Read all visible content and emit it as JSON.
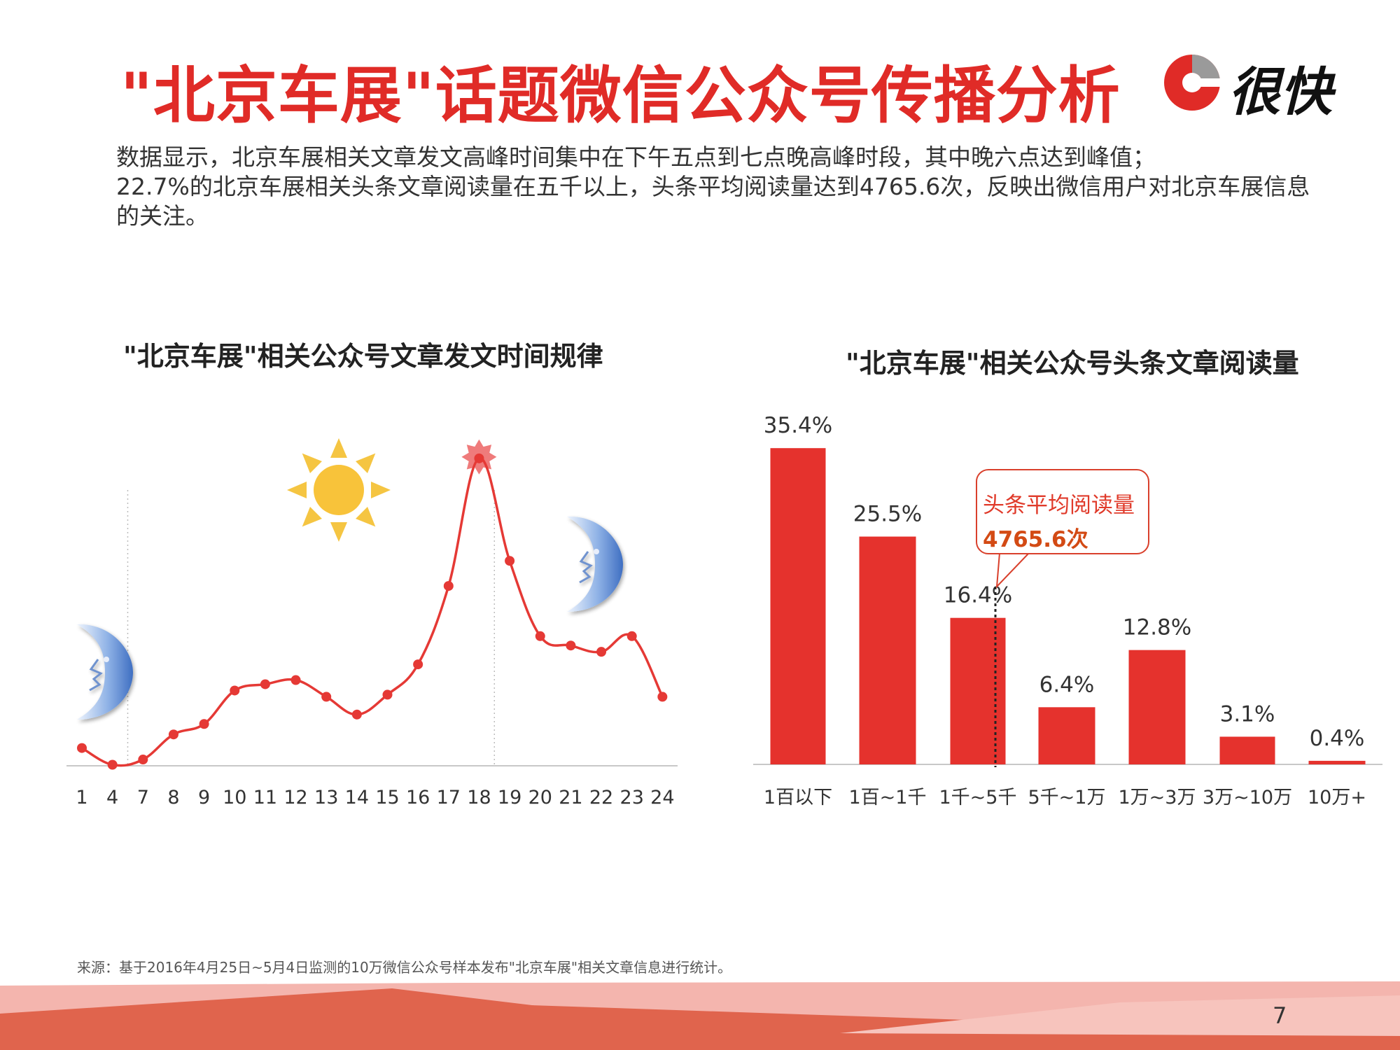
{
  "header": {
    "title": "\"北京车展\"话题微信公众号传播分析",
    "logo_text": "很快",
    "brand_color": "#e02b27"
  },
  "description": {
    "line1": "数据显示，北京车展相关文章发文高峰时间集中在下午五点到七点晚高峰时段，其中晚六点达到峰值；",
    "line2": "22.7%的北京车展相关头条文章阅读量在五千以上，头条平均阅读量达到4765.6次，反映出微信用户对北京车展信息的关注。"
  },
  "chart_data": [
    {
      "type": "line",
      "title": "\"北京车展\"相关公众号文章发文时间规律",
      "x": [
        "1",
        "4",
        "7",
        "8",
        "9",
        "10",
        "11",
        "12",
        "13",
        "14",
        "15",
        "16",
        "17",
        "18",
        "19",
        "20",
        "21",
        "22",
        "23",
        "24"
      ],
      "series": [
        {
          "values": [
            8.5,
            0.5,
            3.0,
            15.0,
            20.0,
            36.0,
            39.0,
            41.0,
            33.0,
            24.5,
            34.0,
            48.5,
            86.0,
            147.0,
            98.0,
            62.0,
            57.5,
            54.5,
            62.0,
            33.0
          ],
          "color": "#e53935"
        }
      ],
      "peak_index": 13,
      "ylim": [
        0,
        160
      ],
      "grid": false,
      "vertical_guides_after": [
        "4",
        "18"
      ],
      "icons": [
        "moon-icon",
        "sun-icon",
        "sun-peak-icon",
        "moon-icon"
      ]
    },
    {
      "type": "bar",
      "title": "\"北京车展\"相关公众号头条文章阅读量",
      "categories": [
        "1百以下",
        "1百~1千",
        "1千~5千",
        "5千~1万",
        "1万~3万",
        "3万~10万",
        "10万+"
      ],
      "values": [
        35.4,
        25.5,
        16.4,
        6.4,
        12.8,
        3.1,
        0.4
      ],
      "labels": [
        "35.4%",
        "25.5%",
        "16.4%",
        "6.4%",
        "12.8%",
        "3.1%",
        "0.4%"
      ],
      "unit": "%",
      "color": "#e5322d",
      "ylim": [
        0,
        38
      ],
      "annotation": {
        "label": "头条平均阅读量",
        "value": "4765.6次"
      }
    }
  ],
  "footer": {
    "source": "来源：基于2016年4月25日~5月4日监测的10万微信公众号样本发布\"北京车展\"相关文章信息进行统计。",
    "page_number": "7"
  }
}
